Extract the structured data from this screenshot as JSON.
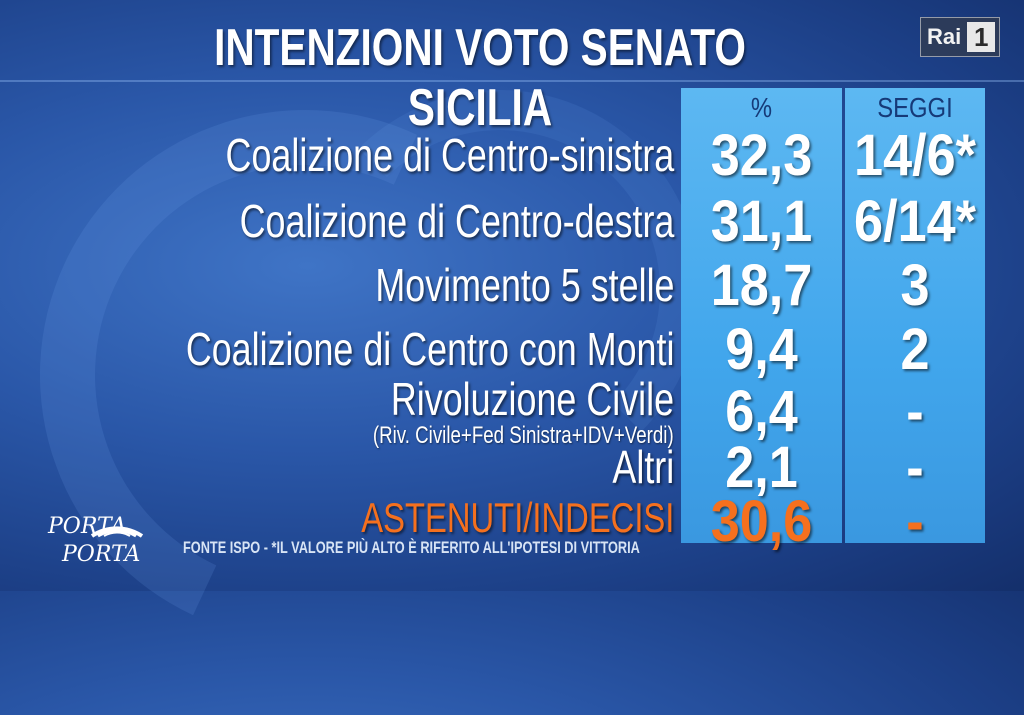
{
  "header": {
    "title": "INTENZIONI VOTO SENATO SICILIA"
  },
  "channel_logo": {
    "brand": "Rai",
    "number": "1"
  },
  "show_logo": {
    "line1": "PORTA",
    "line2": "PORTA"
  },
  "footer": {
    "note": "FONTE ISPO - *IL VALORE PIÙ ALTO È RIFERITO ALL'IPOTESI DI VITTORIA"
  },
  "colors": {
    "highlight": "#f5701e",
    "column_band": "#41a6ec"
  },
  "chart_data": {
    "type": "table",
    "title": "INTENZIONI VOTO SENATO SICILIA",
    "columns": [
      "%",
      "SEGGI"
    ],
    "rows": [
      {
        "label": "Coalizione di Centro-sinistra",
        "sublabel": "",
        "percent": "32,3",
        "seats": "14/6*",
        "highlight": false
      },
      {
        "label": "Coalizione di Centro-destra",
        "sublabel": "",
        "percent": "31,1",
        "seats": "6/14*",
        "highlight": false
      },
      {
        "label": "Movimento 5 stelle",
        "sublabel": "",
        "percent": "18,7",
        "seats": "3",
        "highlight": false
      },
      {
        "label": "Coalizione di Centro con Monti",
        "sublabel": "",
        "percent": "9,4",
        "seats": "2",
        "highlight": false
      },
      {
        "label": "Rivoluzione Civile",
        "sublabel": "(Riv. Civile+Fed Sinistra+IDV+Verdi)",
        "percent": "6,4",
        "seats": "-",
        "highlight": false
      },
      {
        "label": "Altri",
        "sublabel": "",
        "percent": "2,1",
        "seats": "-",
        "highlight": false
      },
      {
        "label": "ASTENUTI/INDECISI",
        "sublabel": "",
        "percent": "30,6",
        "seats": "-",
        "highlight": true
      }
    ]
  }
}
